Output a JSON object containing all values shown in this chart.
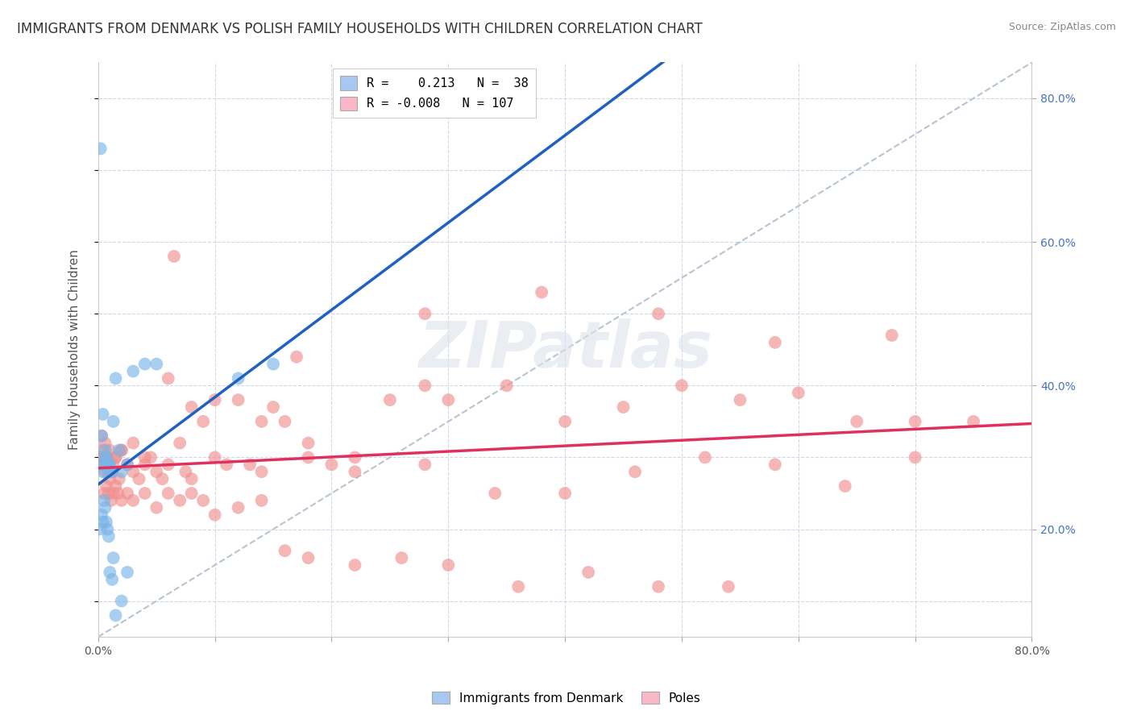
{
  "title": "IMMIGRANTS FROM DENMARK VS POLISH FAMILY HOUSEHOLDS WITH CHILDREN CORRELATION CHART",
  "source": "Source: ZipAtlas.com",
  "ylabel": "Family Households with Children",
  "xlim": [
    0.0,
    0.8
  ],
  "ylim": [
    0.05,
    0.85
  ],
  "legend_label1": "R =    0.213   N =  38",
  "legend_label2": "R = -0.008   N = 107",
  "legend_color1": "#a8c8f0",
  "legend_color2": "#f8b8c8",
  "series1_color": "#7ab4e8",
  "series2_color": "#f09090",
  "trendline1_color": "#2060c0",
  "trendline2_color": "#e03060",
  "watermark": "ZIPatlas",
  "background_color": "#ffffff",
  "grid_color": "#d0d8e8",
  "series1_label": "Immigrants from Denmark",
  "series2_label": "Poles",
  "blue_scatter_x": [
    0.002,
    0.003,
    0.004,
    0.005,
    0.006,
    0.007,
    0.008,
    0.009,
    0.01,
    0.012,
    0.013,
    0.015,
    0.018,
    0.02,
    0.025,
    0.03,
    0.04,
    0.05,
    0.002,
    0.003,
    0.004,
    0.005,
    0.006,
    0.007,
    0.008,
    0.009,
    0.01,
    0.012,
    0.013,
    0.015,
    0.02,
    0.025,
    0.003,
    0.004,
    0.007,
    0.01,
    0.15,
    0.12
  ],
  "blue_scatter_y": [
    0.73,
    0.33,
    0.36,
    0.3,
    0.31,
    0.29,
    0.29,
    0.29,
    0.28,
    0.28,
    0.35,
    0.41,
    0.31,
    0.28,
    0.29,
    0.42,
    0.43,
    0.43,
    0.2,
    0.22,
    0.21,
    0.24,
    0.23,
    0.21,
    0.2,
    0.19,
    0.14,
    0.13,
    0.16,
    0.08,
    0.1,
    0.14,
    0.29,
    0.28,
    0.3,
    0.29,
    0.43,
    0.41
  ],
  "pink_scatter_x": [
    0.001,
    0.002,
    0.003,
    0.004,
    0.005,
    0.006,
    0.007,
    0.008,
    0.009,
    0.01,
    0.012,
    0.013,
    0.015,
    0.018,
    0.02,
    0.025,
    0.03,
    0.035,
    0.04,
    0.045,
    0.05,
    0.055,
    0.06,
    0.065,
    0.07,
    0.075,
    0.08,
    0.09,
    0.1,
    0.11,
    0.12,
    0.13,
    0.14,
    0.15,
    0.16,
    0.17,
    0.18,
    0.2,
    0.22,
    0.25,
    0.28,
    0.3,
    0.35,
    0.4,
    0.45,
    0.5,
    0.55,
    0.6,
    0.65,
    0.7,
    0.005,
    0.007,
    0.009,
    0.011,
    0.013,
    0.015,
    0.017,
    0.02,
    0.025,
    0.03,
    0.04,
    0.05,
    0.06,
    0.07,
    0.08,
    0.09,
    0.1,
    0.12,
    0.14,
    0.16,
    0.18,
    0.22,
    0.26,
    0.3,
    0.36,
    0.42,
    0.48,
    0.54,
    0.003,
    0.006,
    0.01,
    0.015,
    0.02,
    0.03,
    0.04,
    0.06,
    0.08,
    0.1,
    0.14,
    0.18,
    0.22,
    0.28,
    0.34,
    0.4,
    0.46,
    0.52,
    0.58,
    0.64,
    0.7,
    0.75,
    0.28,
    0.38,
    0.48,
    0.58,
    0.68
  ],
  "pink_scatter_y": [
    0.3,
    0.3,
    0.29,
    0.31,
    0.29,
    0.28,
    0.29,
    0.3,
    0.28,
    0.27,
    0.28,
    0.29,
    0.3,
    0.27,
    0.31,
    0.29,
    0.28,
    0.27,
    0.29,
    0.3,
    0.28,
    0.27,
    0.29,
    0.58,
    0.32,
    0.28,
    0.27,
    0.35,
    0.3,
    0.29,
    0.38,
    0.29,
    0.28,
    0.37,
    0.35,
    0.44,
    0.3,
    0.29,
    0.28,
    0.38,
    0.4,
    0.38,
    0.4,
    0.35,
    0.37,
    0.4,
    0.38,
    0.39,
    0.35,
    0.35,
    0.25,
    0.26,
    0.25,
    0.24,
    0.25,
    0.26,
    0.25,
    0.24,
    0.25,
    0.24,
    0.25,
    0.23,
    0.25,
    0.24,
    0.25,
    0.24,
    0.22,
    0.23,
    0.24,
    0.17,
    0.16,
    0.15,
    0.16,
    0.15,
    0.12,
    0.14,
    0.12,
    0.12,
    0.33,
    0.32,
    0.31,
    0.3,
    0.31,
    0.32,
    0.3,
    0.41,
    0.37,
    0.38,
    0.35,
    0.32,
    0.3,
    0.29,
    0.25,
    0.25,
    0.28,
    0.3,
    0.29,
    0.26,
    0.3,
    0.35,
    0.5,
    0.53,
    0.5,
    0.46,
    0.47
  ]
}
